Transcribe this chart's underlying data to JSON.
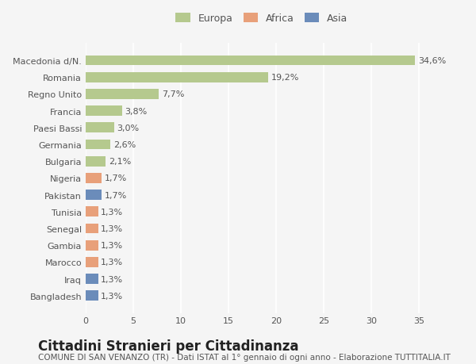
{
  "categories": [
    "Bangladesh",
    "Iraq",
    "Marocco",
    "Gambia",
    "Senegal",
    "Tunisia",
    "Pakistan",
    "Nigeria",
    "Bulgaria",
    "Germania",
    "Paesi Bassi",
    "Francia",
    "Regno Unito",
    "Romania",
    "Macedonia d/N."
  ],
  "values": [
    1.3,
    1.3,
    1.3,
    1.3,
    1.3,
    1.3,
    1.7,
    1.7,
    2.1,
    2.6,
    3.0,
    3.8,
    7.7,
    19.2,
    34.6
  ],
  "colors": [
    "#6b8cba",
    "#6b8cba",
    "#e8a07a",
    "#e8a07a",
    "#e8a07a",
    "#e8a07a",
    "#6b8cba",
    "#e8a07a",
    "#b5c98e",
    "#b5c98e",
    "#b5c98e",
    "#b5c98e",
    "#b5c98e",
    "#b5c98e",
    "#b5c98e"
  ],
  "labels": [
    "1,3%",
    "1,3%",
    "1,3%",
    "1,3%",
    "1,3%",
    "1,3%",
    "1,7%",
    "1,7%",
    "2,1%",
    "2,6%",
    "3,0%",
    "3,8%",
    "7,7%",
    "19,2%",
    "34,6%"
  ],
  "legend": [
    {
      "label": "Europa",
      "color": "#b5c98e"
    },
    {
      "label": "Africa",
      "color": "#e8a07a"
    },
    {
      "label": "Asia",
      "color": "#6b8cba"
    }
  ],
  "xlim": [
    0,
    37
  ],
  "xticks": [
    0,
    5,
    10,
    15,
    20,
    25,
    30,
    35
  ],
  "title": "Cittadini Stranieri per Cittadinanza",
  "subtitle": "COMUNE DI SAN VENANZO (TR) - Dati ISTAT al 1° gennaio di ogni anno - Elaborazione TUTTITALIA.IT",
  "background_color": "#f5f5f5",
  "bar_height": 0.6,
  "grid_color": "#ffffff",
  "label_fontsize": 8,
  "tick_fontsize": 8,
  "title_fontsize": 12,
  "subtitle_fontsize": 7.5
}
